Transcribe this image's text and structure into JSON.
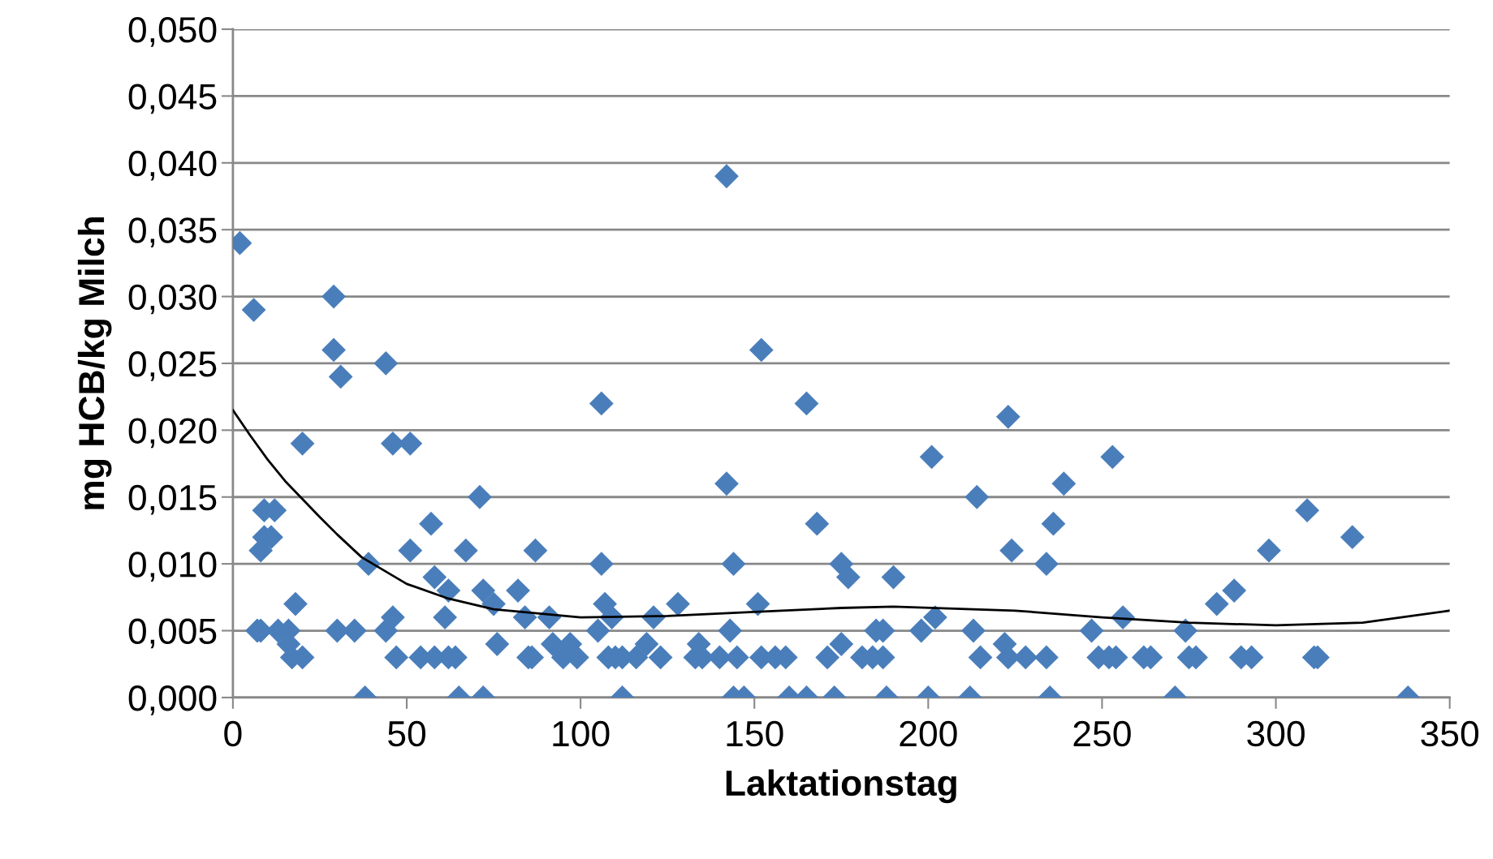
{
  "chart_data": {
    "type": "scatter",
    "xlabel": "Laktationstag",
    "ylabel": "mg HCB/kg Milch",
    "xlim": [
      0,
      350
    ],
    "ylim": [
      0,
      0.05
    ],
    "xticks": [
      0,
      50,
      100,
      150,
      200,
      250,
      300,
      350
    ],
    "yticks": [
      {
        "value": 0,
        "label": "0,000"
      },
      {
        "value": 0.005,
        "label": "0,005"
      },
      {
        "value": 0.01,
        "label": "0,010"
      },
      {
        "value": 0.015,
        "label": "0,015"
      },
      {
        "value": 0.02,
        "label": "0,020"
      },
      {
        "value": 0.025,
        "label": "0,025"
      },
      {
        "value": 0.03,
        "label": "0,030"
      },
      {
        "value": 0.035,
        "label": "0,035"
      },
      {
        "value": 0.04,
        "label": "0,040"
      },
      {
        "value": 0.045,
        "label": "0,045"
      },
      {
        "value": 0.05,
        "label": "0,050"
      }
    ],
    "grid": "y",
    "series": [
      {
        "marker": "diamond",
        "color": "#4a7ebb",
        "x": [
          2,
          6,
          8,
          7,
          8,
          9,
          12,
          9,
          11,
          13,
          16,
          16,
          17,
          20,
          18,
          20,
          29,
          29,
          31,
          30,
          35,
          38,
          39,
          44,
          46,
          51,
          44,
          46,
          47,
          51,
          57,
          58,
          54,
          58,
          62,
          64,
          61,
          62,
          65,
          67,
          71,
          72,
          75,
          76,
          72,
          82,
          84,
          85,
          86,
          87,
          91,
          92,
          95,
          97,
          99,
          106,
          106,
          105,
          107,
          109,
          108,
          110,
          112,
          112,
          116,
          119,
          121,
          123,
          128,
          134,
          133,
          135,
          140,
          142,
          142,
          143,
          144,
          144,
          147,
          145,
          151,
          152,
          152,
          156,
          159,
          160,
          165,
          165,
          168,
          171,
          173,
          175,
          175,
          177,
          181,
          184,
          185,
          187,
          187,
          188,
          190,
          198,
          200,
          201,
          202,
          212,
          213,
          214,
          215,
          222,
          223,
          223,
          224,
          228,
          234,
          234,
          235,
          236,
          239,
          247,
          249,
          252,
          254,
          253,
          256,
          262,
          264,
          271,
          274,
          275,
          277,
          283,
          288,
          290,
          293,
          298,
          309,
          311,
          312,
          322,
          338
        ],
        "values": [
          0.034,
          0.029,
          0.011,
          0.005,
          0.005,
          0.014,
          0.014,
          0.012,
          0.012,
          0.005,
          0.005,
          0.004,
          0.003,
          0.003,
          0.007,
          0.019,
          0.03,
          0.026,
          0.024,
          0.005,
          0.005,
          0.0,
          0.01,
          0.025,
          0.019,
          0.019,
          0.005,
          0.006,
          0.003,
          0.011,
          0.013,
          0.009,
          0.003,
          0.003,
          0.003,
          0.003,
          0.006,
          0.008,
          0.0,
          0.011,
          0.015,
          0.008,
          0.007,
          0.004,
          0.0,
          0.008,
          0.006,
          0.003,
          0.003,
          0.011,
          0.006,
          0.004,
          0.003,
          0.004,
          0.003,
          0.022,
          0.01,
          0.005,
          0.007,
          0.006,
          0.003,
          0.003,
          0.003,
          0.0,
          0.003,
          0.004,
          0.006,
          0.003,
          0.007,
          0.004,
          0.003,
          0.003,
          0.003,
          0.039,
          0.016,
          0.005,
          0.01,
          0.0,
          0.0,
          0.003,
          0.007,
          0.026,
          0.003,
          0.003,
          0.003,
          0.0,
          0.022,
          0.0,
          0.013,
          0.003,
          0.0,
          0.01,
          0.004,
          0.009,
          0.003,
          0.003,
          0.005,
          0.005,
          0.003,
          0.0,
          0.009,
          0.005,
          0.0,
          0.018,
          0.006,
          0.0,
          0.005,
          0.015,
          0.003,
          0.004,
          0.003,
          0.021,
          0.011,
          0.003,
          0.01,
          0.003,
          0.0,
          0.013,
          0.016,
          0.005,
          0.003,
          0.003,
          0.003,
          0.018,
          0.006,
          0.003,
          0.003,
          0.0,
          0.005,
          0.003,
          0.003,
          0.007,
          0.008,
          0.003,
          0.003,
          0.011,
          0.014,
          0.003,
          0.003,
          0.012,
          0.0
        ]
      },
      {
        "type": "line",
        "marker": "none",
        "line_style": "solid",
        "color": "#000000",
        "x": [
          0,
          5,
          10,
          15,
          25,
          30,
          37,
          50,
          62,
          75,
          100,
          125,
          150,
          175,
          190,
          225,
          250,
          275,
          300,
          325,
          350
        ],
        "values": [
          0.0215,
          0.0196,
          0.0178,
          0.0162,
          0.0135,
          0.0122,
          0.0105,
          0.0085,
          0.0074,
          0.0066,
          0.006,
          0.0061,
          0.0064,
          0.0067,
          0.0068,
          0.0065,
          0.006,
          0.0056,
          0.0054,
          0.0056,
          0.0065
        ]
      }
    ]
  }
}
